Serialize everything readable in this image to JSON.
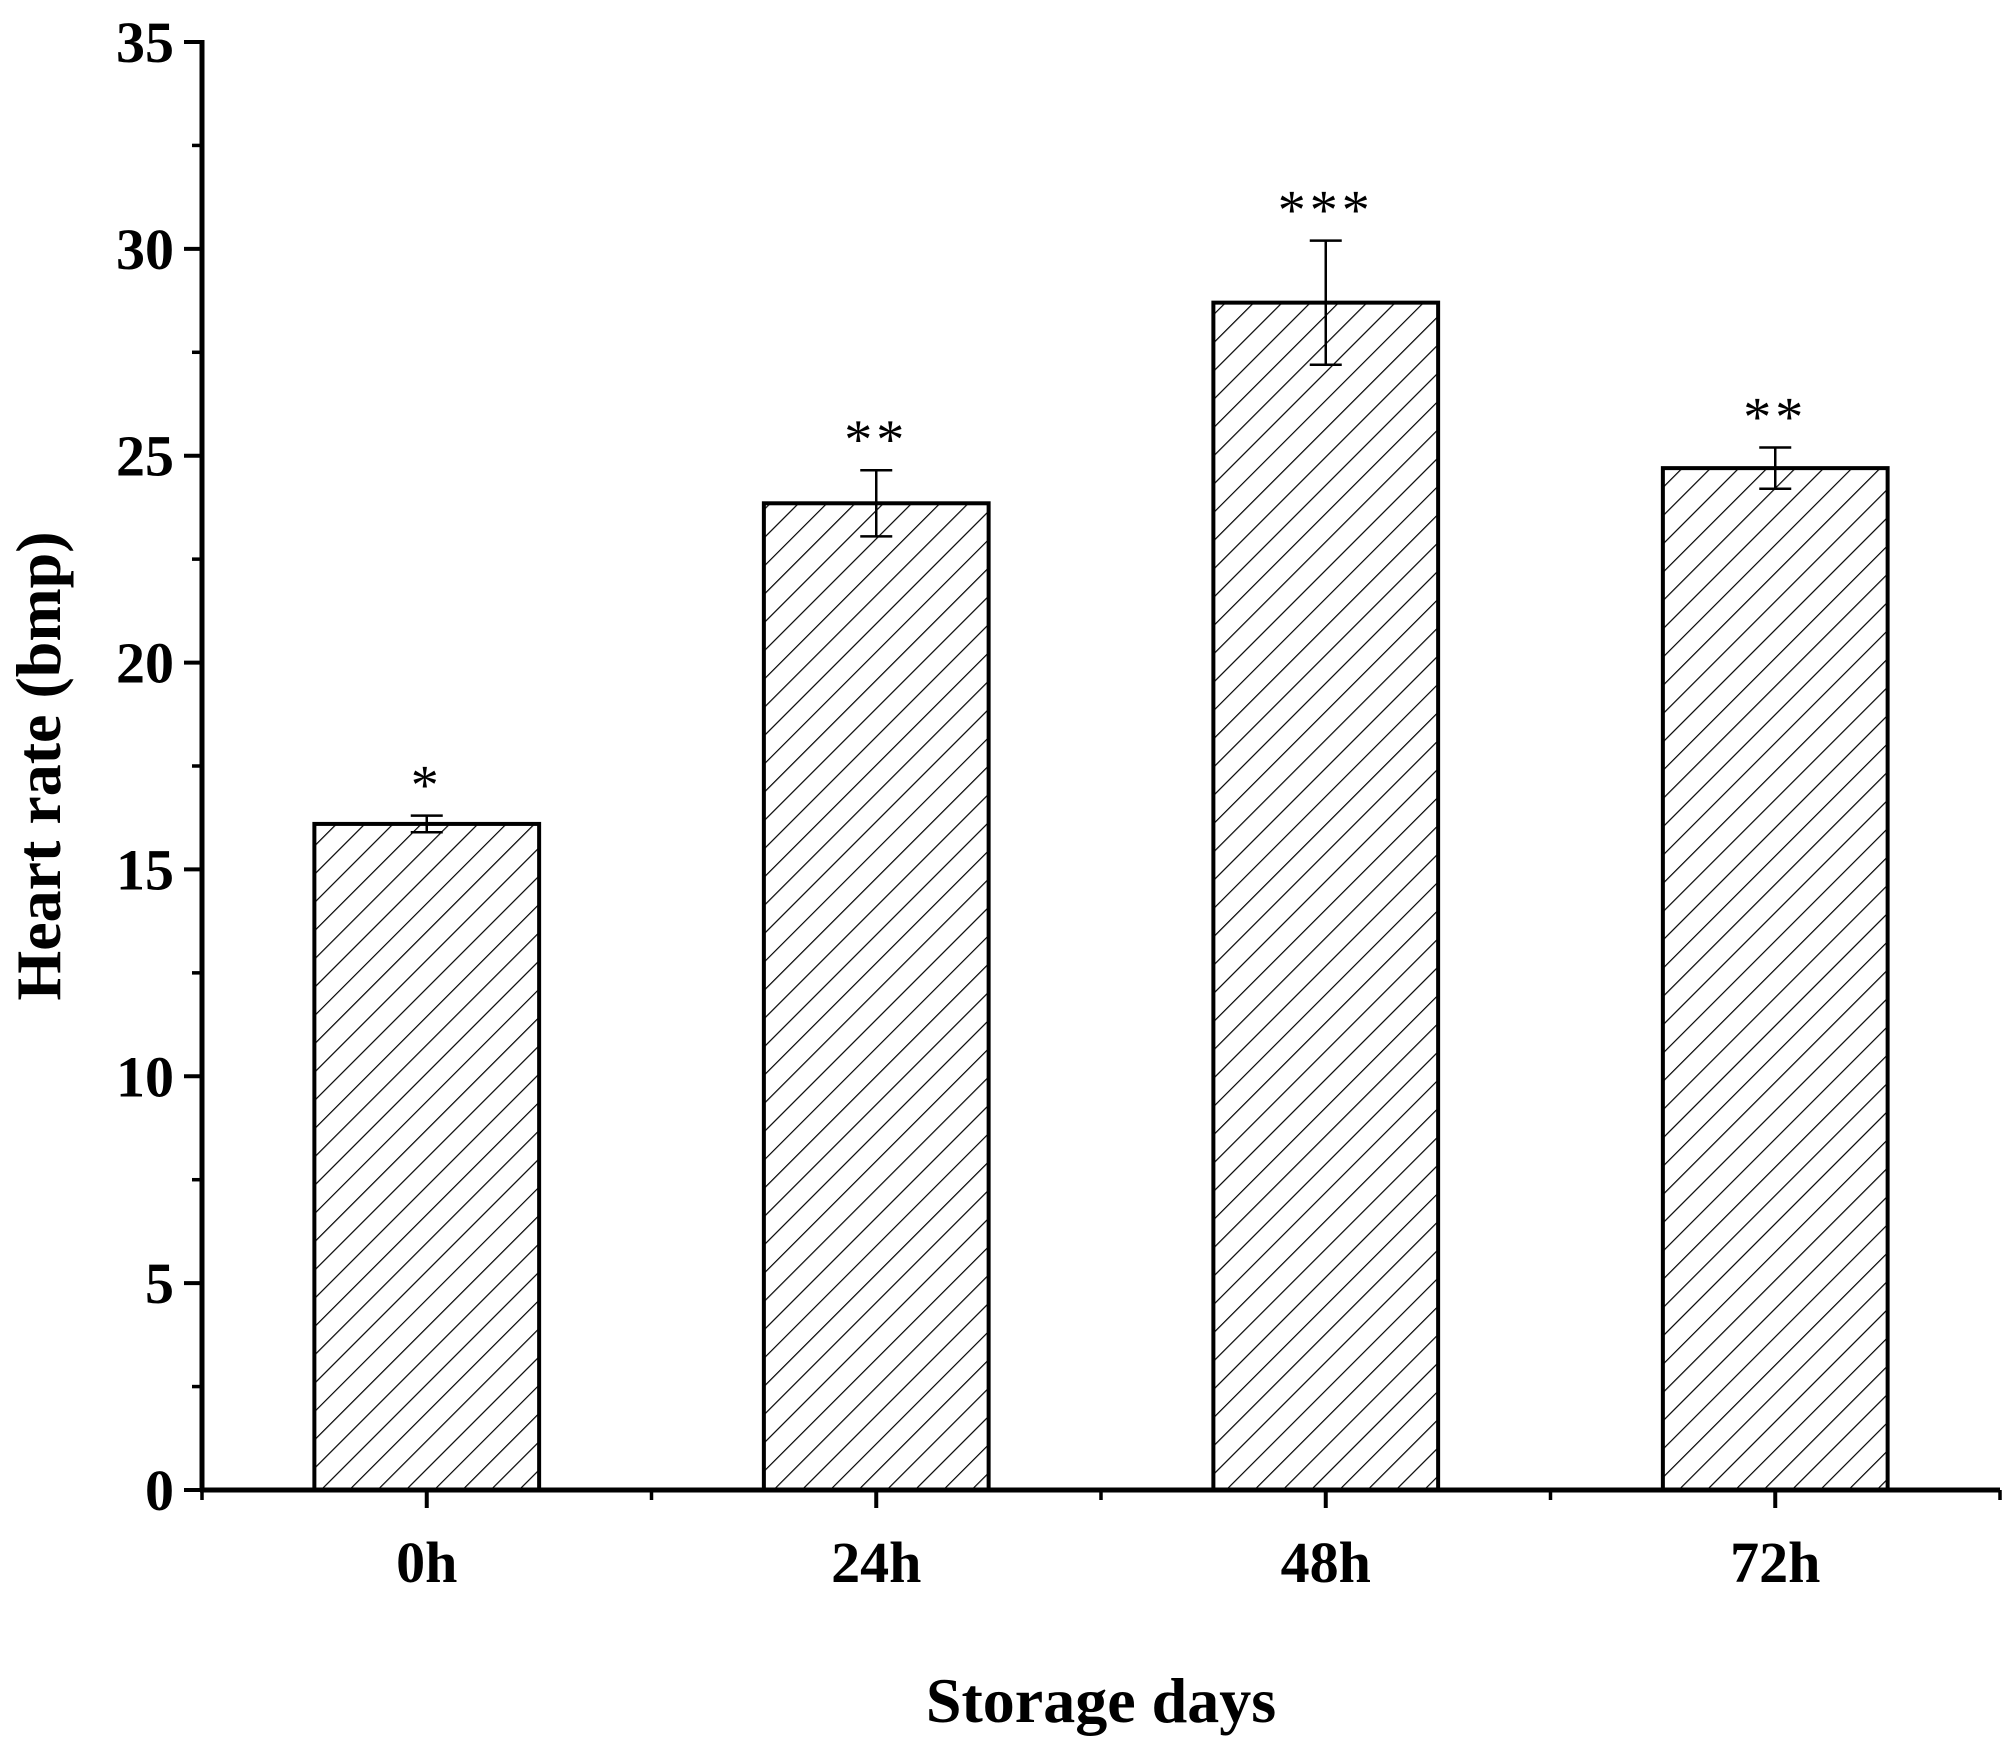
{
  "chart_data": {
    "type": "bar",
    "title": "",
    "xlabel": "Storage days",
    "ylabel": "Heart rate (bmp)",
    "categories": [
      "0h",
      "24h",
      "48h",
      "72h"
    ],
    "values": [
      16.1,
      23.85,
      28.7,
      24.7
    ],
    "errors": [
      0.2,
      0.8,
      1.5,
      0.5
    ],
    "significance": [
      "*",
      "**",
      "***",
      "**"
    ],
    "ylim": [
      0,
      35
    ],
    "yticks": [
      "0",
      "5",
      "10",
      "15",
      "20",
      "25",
      "30",
      "35"
    ],
    "ytick_values": [
      0,
      5,
      10,
      15,
      20,
      25,
      30,
      35
    ],
    "grid": false,
    "bar_fill": "hatched",
    "colors": {
      "bar_stroke": "#000000",
      "hatch": "#000000",
      "background": "#ffffff"
    }
  }
}
